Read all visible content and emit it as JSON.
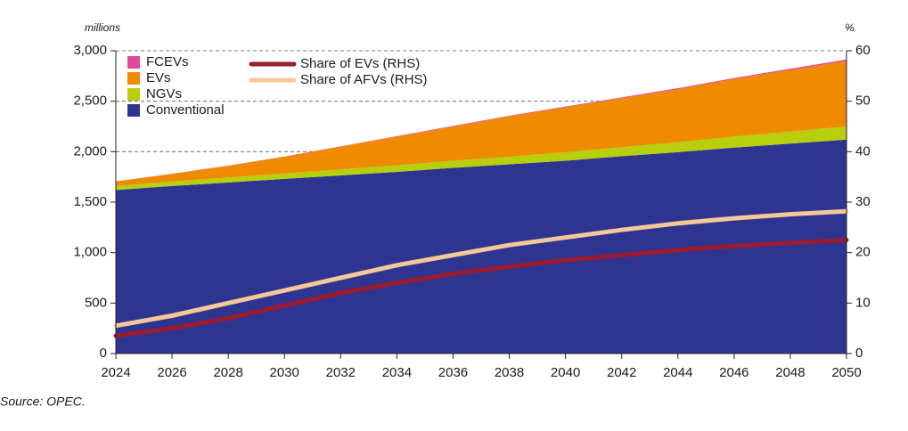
{
  "chart_data": {
    "type": "stacked-area-line",
    "ylabel": "millions",
    "y2label": "%",
    "source": "Source: OPEC.",
    "x": [
      2024,
      2026,
      2028,
      2030,
      2032,
      2034,
      2036,
      2038,
      2040,
      2042,
      2044,
      2046,
      2048,
      2050
    ],
    "xlim": [
      2024,
      2050
    ],
    "xticks": [
      2024,
      2026,
      2028,
      2030,
      2032,
      2034,
      2036,
      2038,
      2040,
      2042,
      2044,
      2046,
      2048,
      2050
    ],
    "ylim": [
      0,
      3000
    ],
    "yticks": [
      0,
      500,
      {
        "value": 1000,
        "label": "1,000"
      },
      {
        "value": 1500,
        "label": "1,500"
      },
      {
        "value": 2000,
        "label": "2,000"
      },
      {
        "value": 2500,
        "label": "2,500"
      },
      {
        "value": 3000,
        "label": "3,000"
      }
    ],
    "y2lim": [
      0,
      60
    ],
    "y2ticks": [
      0,
      10,
      20,
      30,
      40,
      50,
      60
    ],
    "grid": true,
    "series": [
      {
        "name": "Conventional",
        "color": "#2e3590",
        "kind": "area",
        "values": [
          1620,
          1660,
          1695,
          1730,
          1765,
          1800,
          1840,
          1875,
          1910,
          1955,
          1995,
          2040,
          2080,
          2120
        ]
      },
      {
        "name": "NGVs",
        "color": "#b7cf0c",
        "kind": "area",
        "values": [
          40,
          45,
          50,
          55,
          60,
          65,
          70,
          75,
          85,
          90,
          100,
          110,
          120,
          130
        ]
      },
      {
        "name": "EVs",
        "color": "#f08a00",
        "kind": "area",
        "values": [
          45,
          75,
          115,
          165,
          225,
          285,
          340,
          400,
          445,
          485,
          525,
          570,
          610,
          650
        ]
      },
      {
        "name": "FCEVs",
        "color": "#e0489a",
        "kind": "area",
        "values": [
          1,
          1,
          2,
          2,
          3,
          4,
          5,
          6,
          7,
          8,
          9,
          10,
          12,
          14
        ]
      },
      {
        "name": "Share of EVs (RHS)",
        "color": "#9b1b30",
        "kind": "line",
        "axis": "y2",
        "values": [
          3.5,
          5,
          7,
          9.5,
          12,
          14,
          15.8,
          17.2,
          18.5,
          19.5,
          20.5,
          21.3,
          21.9,
          22.5
        ]
      },
      {
        "name": "Share of AFVs (RHS)",
        "color": "#f5c89a",
        "kind": "line",
        "axis": "y2",
        "values": [
          5.5,
          7.5,
          10,
          12.5,
          15,
          17.5,
          19.5,
          21.5,
          23,
          24.5,
          25.8,
          26.8,
          27.6,
          28.2
        ]
      }
    ]
  }
}
